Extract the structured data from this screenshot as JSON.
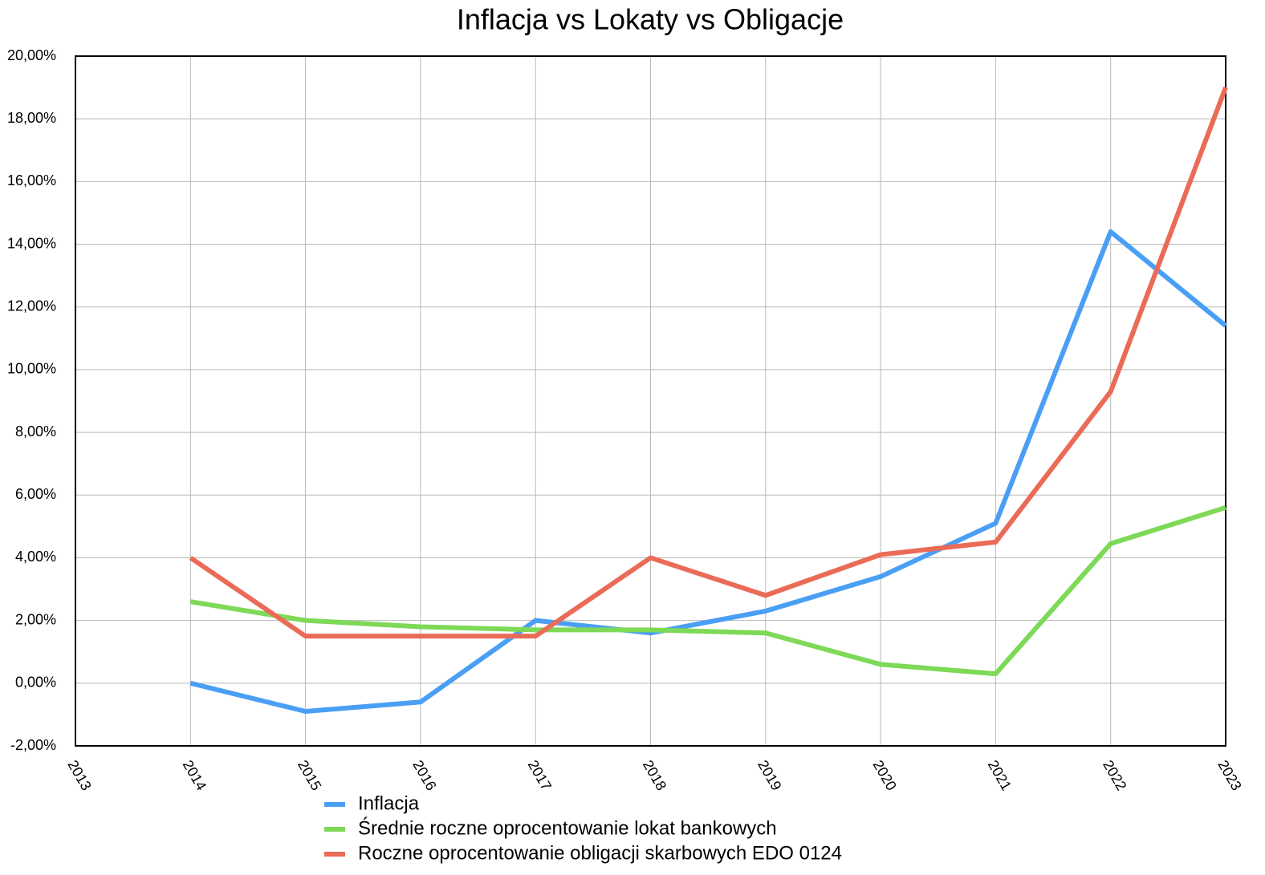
{
  "chart_data": {
    "type": "line",
    "title": "Inflacja vs Lokaty vs Obligacje",
    "x": [
      2014,
      2015,
      2016,
      2017,
      2018,
      2019,
      2020,
      2021,
      2022,
      2023
    ],
    "series": [
      {
        "name": "Inflacja",
        "color": "#4a9ff5",
        "values": [
          0.0,
          -0.9,
          -0.6,
          2.0,
          1.6,
          2.3,
          3.4,
          5.1,
          14.4,
          11.4
        ]
      },
      {
        "name": "Średnie roczne oprocentowanie lokat bankowych",
        "color": "#7ed957",
        "values": [
          2.6,
          2.0,
          1.8,
          1.7,
          1.7,
          1.6,
          0.6,
          0.3,
          4.45,
          5.6
        ]
      },
      {
        "name": "Roczne oprocentowanie obligacji skarbowych EDO 0124",
        "color": "#ea6b57",
        "values": [
          4.0,
          1.5,
          1.5,
          1.5,
          4.0,
          2.8,
          4.1,
          4.5,
          9.3,
          19.0
        ]
      }
    ],
    "xlim": [
      2013,
      2023
    ],
    "xticks": [
      2013,
      2014,
      2015,
      2016,
      2017,
      2018,
      2019,
      2020,
      2021,
      2022,
      2023
    ],
    "ylim": [
      -2,
      20
    ],
    "yticks": [
      {
        "value": -2,
        "label": "-2,00%"
      },
      {
        "value": 0,
        "label": "0,00%"
      },
      {
        "value": 2,
        "label": "2,00%"
      },
      {
        "value": 4,
        "label": "4,00%"
      },
      {
        "value": 6,
        "label": "6,00%"
      },
      {
        "value": 8,
        "label": "8,00%"
      },
      {
        "value": 10,
        "label": "10,00%"
      },
      {
        "value": 12,
        "label": "12,00%"
      },
      {
        "value": 14,
        "label": "14,00%"
      },
      {
        "value": 16,
        "label": "16,00%"
      },
      {
        "value": 18,
        "label": "18,00%"
      },
      {
        "value": 20,
        "label": "20,00%"
      }
    ],
    "grid": true,
    "legend": "bottom"
  }
}
